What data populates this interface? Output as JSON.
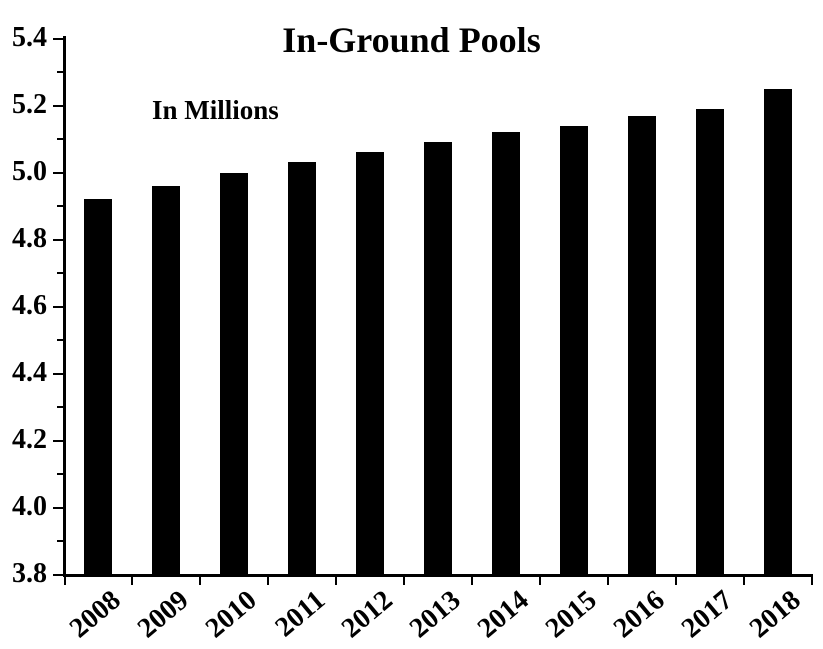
{
  "chart_data": {
    "type": "bar",
    "title": "In-Ground Pools",
    "units_note": "In Millions",
    "categories": [
      "2008",
      "2009",
      "2010",
      "2011",
      "2012",
      "2013",
      "2014",
      "2015",
      "2016",
      "2017",
      "2018"
    ],
    "values": [
      4.92,
      4.96,
      5.0,
      5.03,
      5.06,
      5.09,
      5.12,
      5.14,
      5.17,
      5.19,
      5.25
    ],
    "xlabel": "",
    "ylabel": "",
    "ylim": [
      3.8,
      5.4
    ],
    "y_major_step": 0.2,
    "y_minor_step": 0.1,
    "y_tick_labels": [
      "3.8",
      "4.0",
      "4.2",
      "4.4",
      "4.6",
      "4.8",
      "5.0",
      "5.2",
      "5.4"
    ],
    "grid": false,
    "legend": false,
    "bar_color": "#000000",
    "axis_color": "#000000",
    "text_color": "#000000",
    "background_color": "#ffffff"
  }
}
